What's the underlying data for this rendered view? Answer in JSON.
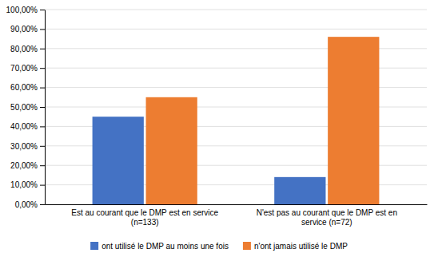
{
  "chart_data": {
    "type": "bar",
    "categories": [
      "Est au courant que le DMP est en service\n(n=133)",
      "N'est pas au courant que le DMP est en\nservice (n=72)"
    ],
    "series": [
      {
        "name": "ont utilisé le DMP au moins une fois",
        "color": "#4472C4",
        "values": [
          0.45,
          0.14
        ]
      },
      {
        "name": "n'ont jamais utilisé le DMP",
        "color": "#ED7D31",
        "values": [
          0.55,
          0.86
        ]
      }
    ],
    "ylim": [
      0,
      1.0
    ],
    "yticks": [
      {
        "value": 0.0,
        "label": "0,00%"
      },
      {
        "value": 0.1,
        "label": "10,00%"
      },
      {
        "value": 0.2,
        "label": "20,00%"
      },
      {
        "value": 0.3,
        "label": "30,00%"
      },
      {
        "value": 0.4,
        "label": "40,00%"
      },
      {
        "value": 0.5,
        "label": "50,00%"
      },
      {
        "value": 0.6,
        "label": "60,00%"
      },
      {
        "value": 0.7,
        "label": "70,00%"
      },
      {
        "value": 0.8,
        "label": "80,00%"
      },
      {
        "value": 0.9,
        "label": "90,00%"
      },
      {
        "value": 1.0,
        "label": "100,00%"
      }
    ],
    "grid": true,
    "legend": "bottom"
  }
}
